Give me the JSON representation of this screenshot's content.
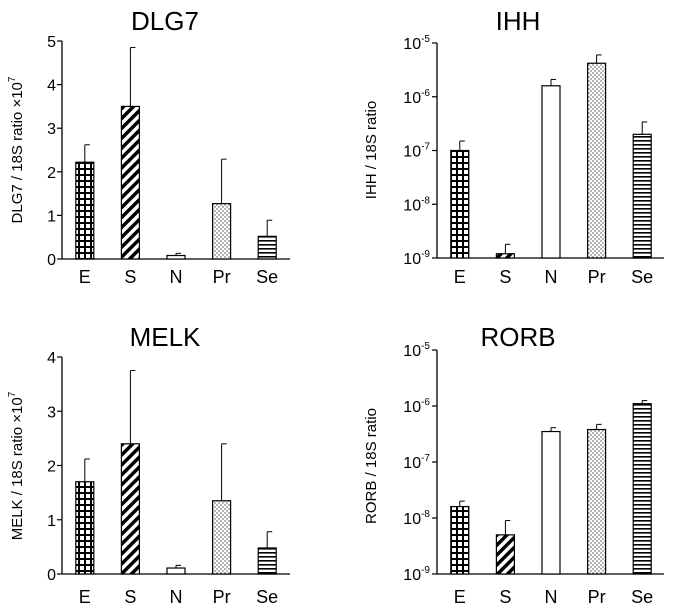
{
  "chart_data": [
    {
      "id": "dlg7",
      "type": "bar",
      "title": "DLG7",
      "ylabel": "DLG7 / 18S ratio ×10",
      "ylabel_exp": "7",
      "scale": "linear",
      "ylim": [
        0,
        5
      ],
      "yticks": [
        "0",
        "1",
        "2",
        "3",
        "4",
        "5"
      ],
      "categories": [
        "E",
        "S",
        "N",
        "Pr",
        "Se"
      ],
      "values": [
        2.22,
        3.5,
        0.08,
        1.27,
        0.52
      ],
      "errors": [
        0.4,
        1.35,
        0.05,
        1.02,
        0.37
      ]
    },
    {
      "id": "ihh",
      "type": "bar",
      "title": "IHH",
      "ylabel": "IHH / 18S ratio",
      "scale": "log",
      "ylim": [
        1e-09,
        1e-05
      ],
      "yticks": [
        "-9",
        "-8",
        "-7",
        "-6",
        "-5"
      ],
      "tick_base": "10",
      "categories": [
        "E",
        "S",
        "N",
        "Pr",
        "Se"
      ],
      "values": [
        1e-07,
        1.2e-09,
        1.6e-06,
        4.2e-06,
        2e-07
      ],
      "errors_top": [
        1.5e-07,
        1.8e-09,
        2.1e-06,
        6e-06,
        3.4e-07
      ]
    },
    {
      "id": "melk",
      "type": "bar",
      "title": "MELK",
      "ylabel": "MELK / 18S ratio ×10",
      "ylabel_exp": "7",
      "scale": "linear",
      "ylim": [
        0,
        4
      ],
      "yticks": [
        "0",
        "1",
        "2",
        "3",
        "4"
      ],
      "categories": [
        "E",
        "S",
        "N",
        "Pr",
        "Se"
      ],
      "values": [
        1.7,
        2.4,
        0.11,
        1.35,
        0.48
      ],
      "errors": [
        0.42,
        1.35,
        0.05,
        1.05,
        0.3
      ]
    },
    {
      "id": "rorb",
      "type": "bar",
      "title": "RORB",
      "ylabel": "RORB / 18S ratio",
      "scale": "log",
      "ylim": [
        1e-09,
        1e-05
      ],
      "yticks": [
        "-9",
        "-8",
        "-7",
        "-6",
        "-5"
      ],
      "tick_base": "10",
      "categories": [
        "E",
        "S",
        "N",
        "Pr",
        "Se"
      ],
      "values": [
        1.6e-08,
        5e-09,
        3.5e-07,
        3.8e-07,
        1.1e-06
      ],
      "errors_top": [
        2e-08,
        9e-09,
        4.1e-07,
        4.7e-07,
        1.25e-06
      ]
    }
  ],
  "patterns": [
    "grid",
    "diag",
    "none",
    "dots",
    "hlines"
  ],
  "colors": {
    "axis": "#000000",
    "bar_fill": "#ffffff"
  }
}
